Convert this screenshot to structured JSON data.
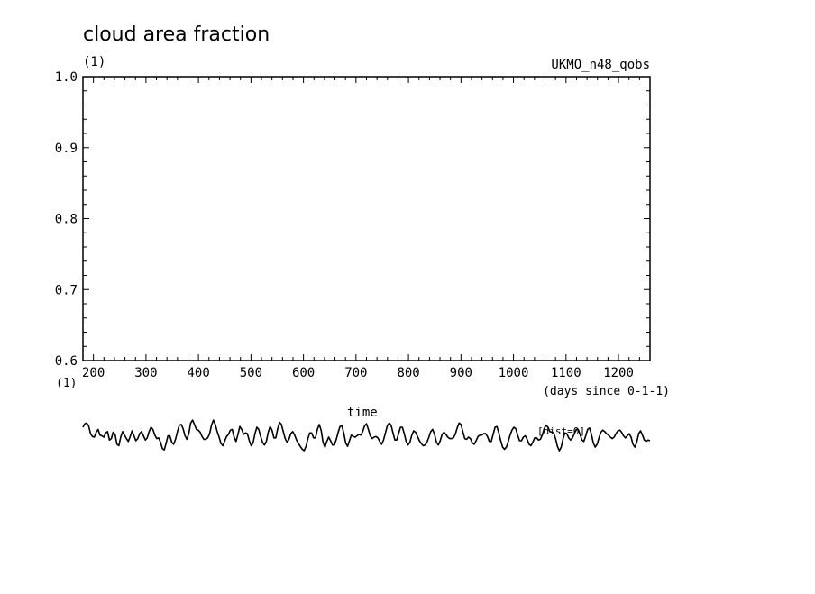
{
  "chart_data": {
    "type": "line",
    "title": "cloud area fraction",
    "y_unit_label": "(1)",
    "model_label": "UKMO_n48_qobs",
    "x_unit_label": "(days since 0-1-1)",
    "xlim": [
      180,
      1260
    ],
    "ylim": [
      0.6,
      1.0
    ],
    "x_ticks": [
      200,
      300,
      400,
      500,
      600,
      700,
      800,
      900,
      1000,
      1100,
      1200
    ],
    "y_ticks": [
      "0.6",
      "0.7",
      "0.8",
      "0.9",
      "1.0"
    ],
    "overflow_text_y_unit": "(1)",
    "overflow_text_time": "time",
    "overflow_text_dist": "[dist=0]",
    "series": [
      {
        "line_color": "#000000",
        "x": [
          180,
          183.6,
          187.2,
          190.8,
          194.4,
          198,
          201.6,
          205.2,
          208.8,
          212.4,
          216,
          219.6,
          223.2,
          226.8,
          230.4,
          234,
          237.6,
          241.2,
          244.8,
          248.4,
          252,
          255.6,
          259.2,
          262.8,
          266.4,
          270,
          273.6,
          277.2,
          280.8,
          284.4,
          288,
          291.6,
          295.2,
          298.8,
          302.4,
          306,
          309.6,
          313.2,
          316.8,
          320.4,
          324,
          327.6,
          331.2,
          334.8,
          338.4,
          342,
          345.6,
          349.2,
          352.8,
          356.4,
          360,
          363.6,
          367.2,
          370.8,
          374.4,
          378,
          381.6,
          385.2,
          388.8,
          392.4,
          396,
          399.6,
          403.2,
          406.8,
          410.4,
          414,
          417.6,
          421.2,
          424.8,
          428.4,
          432,
          435.6,
          439.2,
          442.8,
          446.4,
          450,
          453.6,
          457.2,
          460.8,
          464.4,
          468,
          471.6,
          475.2,
          478.8,
          482.4,
          486,
          489.6,
          493.2,
          496.8,
          500.4,
          504,
          507.6,
          511.2,
          514.8,
          518.4,
          522,
          525.6,
          529.2,
          532.8,
          536.4,
          540,
          543.6,
          547.2,
          550.8,
          554.4,
          558,
          561.6,
          565.2,
          568.8,
          572.4,
          576,
          579.6,
          583.2,
          586.8,
          590.4,
          594,
          597.6,
          601.2,
          604.8,
          608.4,
          612,
          615.6,
          619.2,
          622.8,
          626.4,
          630,
          633.6,
          637.2,
          640.8,
          644.4,
          648,
          651.6,
          655.2,
          658.8,
          662.4,
          666,
          669.6,
          673.2,
          676.8,
          680.4,
          684,
          687.6,
          691.2,
          694.8,
          698.4,
          702,
          705.6,
          709.2,
          712.8,
          716.4,
          720,
          723.6,
          727.2,
          730.8,
          734.4,
          738,
          741.6,
          745.2,
          748.8,
          752.4,
          756,
          759.6,
          763.2,
          766.8,
          770.4,
          774,
          777.6,
          781.2,
          784.8,
          788.4,
          792,
          795.6,
          799.2,
          802.8,
          806.4,
          810,
          813.6,
          817.2,
          820.8,
          824.4,
          828,
          831.6,
          835.2,
          838.8,
          842.4,
          846,
          849.6,
          853.2,
          856.8,
          860.4,
          864,
          867.6,
          871.2,
          874.8,
          878.4,
          882,
          885.6,
          889.2,
          892.8,
          896.4,
          900,
          903.6,
          907.2,
          910.8,
          914.4,
          918,
          921.6,
          925.2,
          928.8,
          932.4,
          936,
          939.6,
          943.2,
          946.8,
          950.4,
          954,
          957.6,
          961.2,
          964.8,
          968.4,
          972,
          975.6,
          979.2,
          982.8,
          986.4,
          990,
          993.6,
          997.2,
          1000.8,
          1004.4,
          1008,
          1011.6,
          1015.2,
          1018.8,
          1022.4,
          1026,
          1029.6,
          1033.2,
          1036.8,
          1040.4,
          1044,
          1047.6,
          1051.2,
          1054.8,
          1058.4,
          1062,
          1065.6,
          1069.2,
          1072.8,
          1076.4,
          1080,
          1083.6,
          1087.2,
          1090.8,
          1094.4,
          1098,
          1101.6,
          1105.2,
          1108.8,
          1112.4,
          1116,
          1119.6,
          1123.2,
          1126.8,
          1130.4,
          1134,
          1137.6,
          1141.2,
          1144.8,
          1148.4,
          1152,
          1155.6,
          1159.2,
          1162.8,
          1166.4,
          1170,
          1173.6,
          1177.2,
          1180.8,
          1184.4,
          1188,
          1191.6,
          1195.2,
          1198.8,
          1202.4,
          1206,
          1209.6,
          1213.2,
          1216.8,
          1220.4,
          1224,
          1227.6,
          1231.2,
          1234.8,
          1238.4,
          1242,
          1245.6,
          1249.2,
          1252.8,
          1256.4,
          1260
        ],
        "y": [
          0.506,
          0.511,
          0.512,
          0.508,
          0.497,
          0.493,
          0.492,
          0.499,
          0.503,
          0.495,
          0.494,
          0.492,
          0.498,
          0.5,
          0.488,
          0.49,
          0.499,
          0.496,
          0.482,
          0.48,
          0.492,
          0.5,
          0.495,
          0.49,
          0.486,
          0.493,
          0.501,
          0.494,
          0.487,
          0.49,
          0.497,
          0.5,
          0.494,
          0.488,
          0.491,
          0.5,
          0.506,
          0.503,
          0.495,
          0.49,
          0.491,
          0.485,
          0.476,
          0.474,
          0.484,
          0.494,
          0.494,
          0.485,
          0.482,
          0.489,
          0.5,
          0.509,
          0.51,
          0.504,
          0.494,
          0.489,
          0.497,
          0.512,
          0.516,
          0.51,
          0.503,
          0.502,
          0.499,
          0.493,
          0.489,
          0.489,
          0.491,
          0.497,
          0.509,
          0.516,
          0.51,
          0.5,
          0.492,
          0.483,
          0.48,
          0.487,
          0.493,
          0.496,
          0.502,
          0.503,
          0.492,
          0.486,
          0.496,
          0.507,
          0.503,
          0.496,
          0.498,
          0.497,
          0.487,
          0.48,
          0.484,
          0.497,
          0.506,
          0.503,
          0.493,
          0.485,
          0.481,
          0.486,
          0.499,
          0.507,
          0.502,
          0.491,
          0.491,
          0.504,
          0.513,
          0.51,
          0.5,
          0.49,
          0.485,
          0.489,
          0.497,
          0.5,
          0.495,
          0.488,
          0.483,
          0.479,
          0.475,
          0.473,
          0.479,
          0.49,
          0.498,
          0.498,
          0.491,
          0.491,
          0.503,
          0.51,
          0.502,
          0.485,
          0.478,
          0.486,
          0.492,
          0.487,
          0.481,
          0.481,
          0.489,
          0.499,
          0.507,
          0.508,
          0.498,
          0.484,
          0.479,
          0.487,
          0.495,
          0.493,
          0.492,
          0.494,
          0.496,
          0.495,
          0.5,
          0.508,
          0.511,
          0.503,
          0.494,
          0.49,
          0.492,
          0.493,
          0.491,
          0.486,
          0.482,
          0.488,
          0.498,
          0.508,
          0.512,
          0.509,
          0.498,
          0.488,
          0.488,
          0.497,
          0.506,
          0.506,
          0.497,
          0.486,
          0.481,
          0.485,
          0.495,
          0.501,
          0.499,
          0.493,
          0.487,
          0.483,
          0.48,
          0.481,
          0.485,
          0.492,
          0.5,
          0.503,
          0.496,
          0.485,
          0.481,
          0.487,
          0.496,
          0.499,
          0.496,
          0.492,
          0.49,
          0.49,
          0.491,
          0.496,
          0.505,
          0.512,
          0.51,
          0.5,
          0.49,
          0.489,
          0.492,
          0.49,
          0.484,
          0.482,
          0.487,
          0.493,
          0.495,
          0.495,
          0.497,
          0.497,
          0.493,
          0.486,
          0.486,
          0.496,
          0.506,
          0.507,
          0.498,
          0.487,
          0.478,
          0.475,
          0.478,
          0.486,
          0.495,
          0.502,
          0.506,
          0.504,
          0.495,
          0.487,
          0.487,
          0.492,
          0.494,
          0.489,
          0.482,
          0.48,
          0.485,
          0.491,
          0.491,
          0.488,
          0.489,
          0.495,
          0.504,
          0.509,
          0.506,
          0.5,
          0.499,
          0.498,
          0.49,
          0.479,
          0.473,
          0.478,
          0.49,
          0.498,
          0.497,
          0.491,
          0.488,
          0.491,
          0.497,
          0.503,
          0.503,
          0.496,
          0.488,
          0.486,
          0.494,
          0.503,
          0.505,
          0.496,
          0.484,
          0.478,
          0.482,
          0.491,
          0.499,
          0.502,
          0.5,
          0.497,
          0.495,
          0.492,
          0.49,
          0.492,
          0.497,
          0.501,
          0.502,
          0.499,
          0.494,
          0.491,
          0.494,
          0.497,
          0.492,
          0.482,
          0.478,
          0.485,
          0.497,
          0.501,
          0.495,
          0.488,
          0.486,
          0.488,
          0.487
        ]
      }
    ]
  }
}
